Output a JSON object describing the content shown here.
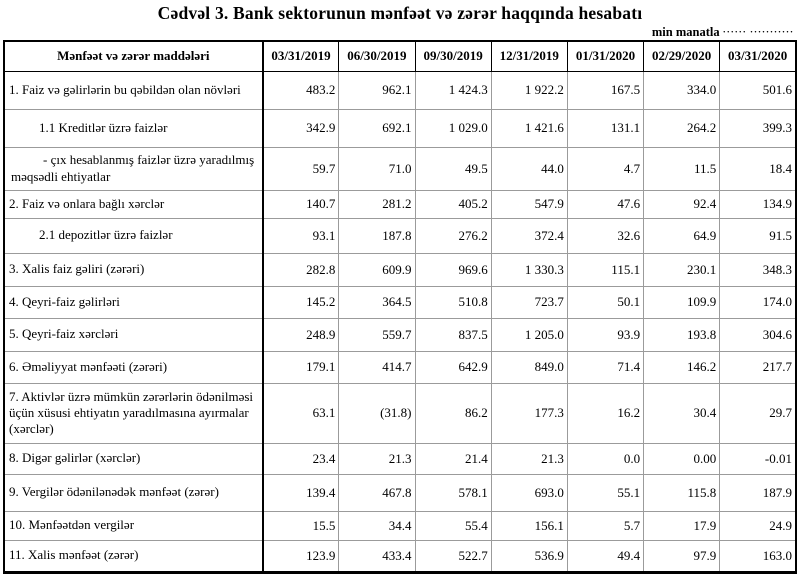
{
  "title": "Cədvəl 3. Bank sektorunun mənfəət və zərər haqqında hesabatı",
  "unit_label": "min manatla",
  "unit_dots": "······ ···········",
  "table": {
    "header": [
      "Mənfəət və zərər maddələri",
      "03/31/2019",
      "06/30/2019",
      "09/30/2019",
      "12/31/2019",
      "01/31/2020",
      "02/29/2020",
      "03/31/2020"
    ],
    "rows": [
      {
        "label": "1. Faiz və gəlirlərin bu qəbildən olan növləri",
        "indent": 0,
        "values": [
          "483.2",
          "962.1",
          "1 424.3",
          "1 922.2",
          "167.5",
          "334.0",
          "501.6"
        ]
      },
      {
        "label": "1.1 Kreditlər üzrə faizlər",
        "indent": 1,
        "values": [
          "342.9",
          "692.1",
          "1 029.0",
          "1 421.6",
          "131.1",
          "264.2",
          "399.3"
        ]
      },
      {
        "label": "-  çıx hesablanmış faizlər üzrə yaradılmış məqsədli ehtiyatlar",
        "indent": 2,
        "values": [
          "59.7",
          "71.0",
          "49.5",
          "44.0",
          "4.7",
          "11.5",
          "18.4"
        ]
      },
      {
        "label": "2. Faiz və onlara bağlı xərclər",
        "indent": 0,
        "values": [
          "140.7",
          "281.2",
          "405.2",
          "547.9",
          "47.6",
          "92.4",
          "134.9"
        ]
      },
      {
        "label": "2.1 depozitlər üzrə faizlər",
        "indent": 1,
        "values": [
          "93.1",
          "187.8",
          "276.2",
          "372.4",
          "32.6",
          "64.9",
          "91.5"
        ]
      },
      {
        "label": "3. Xalis faiz gəliri (zərəri)",
        "indent": 0,
        "values": [
          "282.8",
          "609.9",
          "969.6",
          "1 330.3",
          "115.1",
          "230.1",
          "348.3"
        ]
      },
      {
        "label": "4. Qeyri-faiz gəlirləri",
        "indent": 0,
        "values": [
          "145.2",
          "364.5",
          "510.8",
          "723.7",
          "50.1",
          "109.9",
          "174.0"
        ]
      },
      {
        "label": "5. Qeyri-faiz xərcləri",
        "indent": 0,
        "values": [
          "248.9",
          "559.7",
          "837.5",
          "1 205.0",
          "93.9",
          "193.8",
          "304.6"
        ]
      },
      {
        "label": "6. Əməliyyat mənfəəti (zərəri)",
        "indent": 0,
        "values": [
          "179.1",
          "414.7",
          "642.9",
          "849.0",
          "71.4",
          "146.2",
          "217.7"
        ]
      },
      {
        "label": "7. Aktivlər üzrə mümkün zərərlərin ödənilməsi üçün xüsusi ehtiyatın yaradılmasına ayırmalar (xərclər)",
        "indent": 0,
        "values": [
          "63.1",
          "(31.8)",
          "86.2",
          "177.3",
          "16.2",
          "30.4",
          "29.7"
        ]
      },
      {
        "label": "8. Digər gəlirlər (xərclər)",
        "indent": 0,
        "values": [
          "23.4",
          "21.3",
          "21.4",
          "21.3",
          "0.0",
          "0.00",
          "-0.01"
        ]
      },
      {
        "label": "9. Vergilər ödənilənədək mənfəət (zərər)",
        "indent": 0,
        "values": [
          "139.4",
          "467.8",
          "578.1",
          "693.0",
          "55.1",
          "115.8",
          "187.9"
        ]
      },
      {
        "label": "10. Mənfəətdən vergilər",
        "indent": 0,
        "values": [
          "15.5",
          "34.4",
          "55.4",
          "156.1",
          "5.7",
          "17.9",
          "24.9"
        ]
      },
      {
        "label": "11. Xalis mənfəət (zərər)",
        "indent": 0,
        "values": [
          "123.9",
          "433.4",
          "522.7",
          "536.9",
          "49.4",
          "97.9",
          "163.0"
        ]
      }
    ]
  }
}
